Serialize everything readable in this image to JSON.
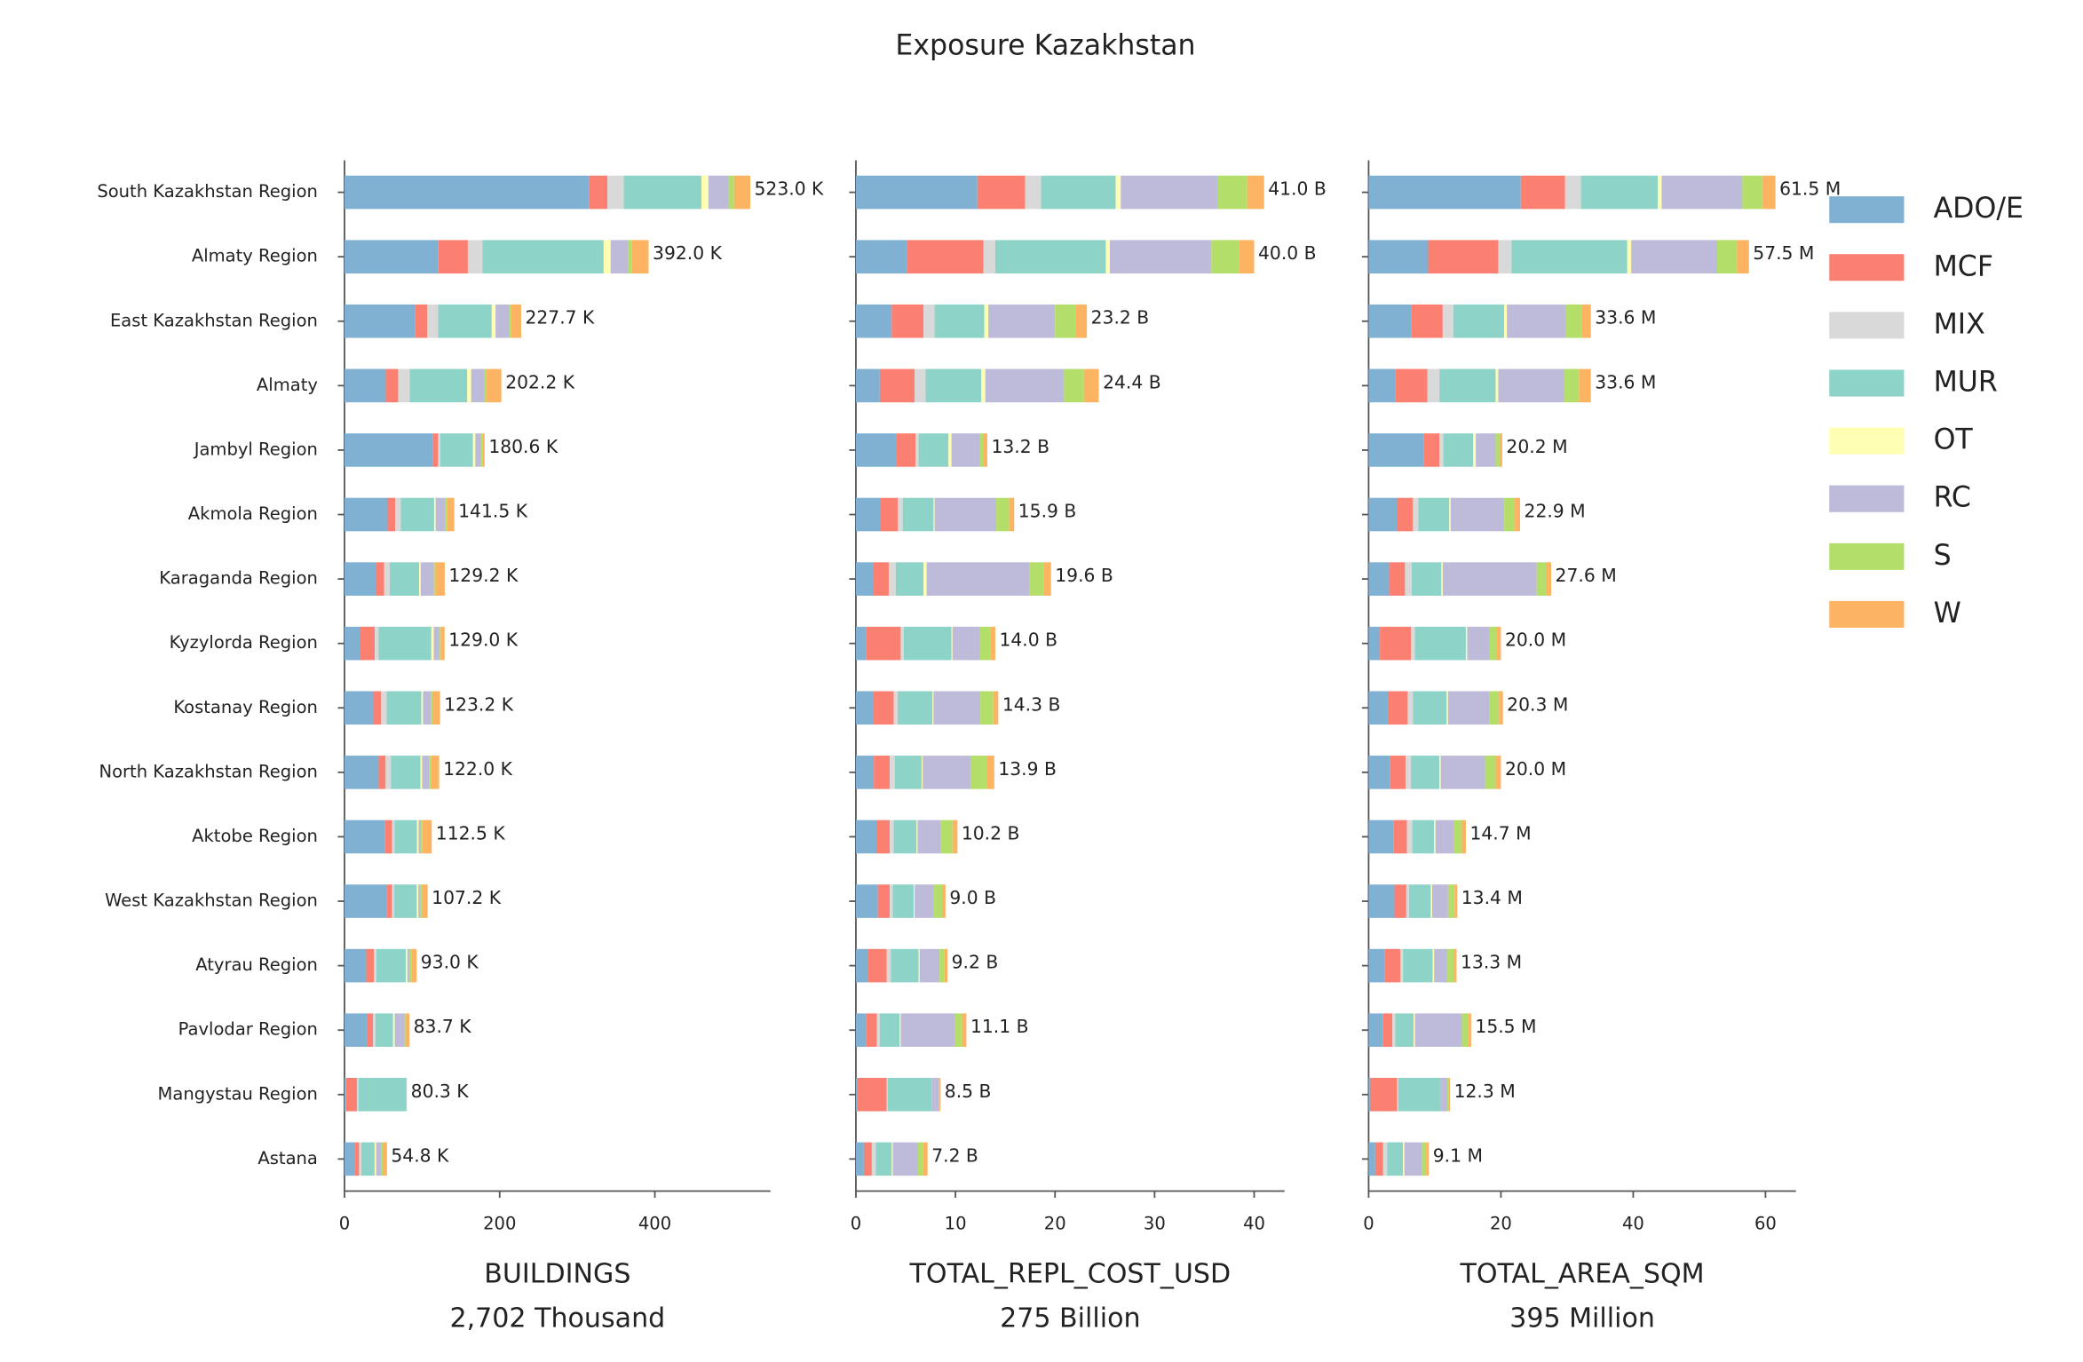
{
  "chart_data": {
    "type": "stacked_barh",
    "title": "Exposure Kazakhstan",
    "categories": [
      "South Kazakhstan Region",
      "Almaty Region",
      "East Kazakhstan Region",
      "Almaty",
      "Jambyl Region",
      "Akmola Region",
      "Karaganda Region",
      "Kyzylorda Region",
      "Kostanay Region",
      "North Kazakhstan Region",
      "Aktobe Region",
      "West Kazakhstan Region",
      "Atyrau Region",
      "Pavlodar Region",
      "Mangystau Region",
      "Astana"
    ],
    "series": [
      {
        "name": "ADO/E",
        "color": "#80b1d3"
      },
      {
        "name": "MCF",
        "color": "#fb8072"
      },
      {
        "name": "MIX",
        "color": "#d9d9d9"
      },
      {
        "name": "MUR",
        "color": "#8dd3c7"
      },
      {
        "name": "OT",
        "color": "#ffffb3"
      },
      {
        "name": "RC",
        "color": "#bebada"
      },
      {
        "name": "S",
        "color": "#b3de69"
      },
      {
        "name": "W",
        "color": "#fdb462"
      }
    ],
    "panels": [
      {
        "xlabel": "BUILDINGS",
        "subtitle": "2,702 Thousand",
        "xlim": [
          0,
          549
        ],
        "xticks": [
          0,
          200,
          400
        ],
        "values": [
          [
            315,
            121,
            90.7,
            53.2,
            113.6,
            55.5,
            41.2,
            20,
            37.2,
            44,
            52.5,
            54.2,
            28,
            29.7,
            2,
            13.8
          ],
          [
            24,
            38,
            16,
            16,
            7,
            10,
            10,
            19,
            10,
            9,
            9,
            7,
            10,
            7,
            14,
            5
          ],
          [
            21,
            19,
            14,
            15,
            3,
            7,
            7,
            5,
            7,
            7,
            3,
            3,
            3,
            3,
            2,
            3
          ],
          [
            100,
            156,
            69,
            74,
            42,
            43,
            38,
            68,
            45,
            38,
            29,
            29,
            38,
            23,
            61.3,
            17
          ],
          [
            9,
            9,
            5,
            5,
            3,
            2,
            2,
            3,
            2,
            2,
            2,
            2,
            2,
            2,
            0,
            2
          ],
          [
            26,
            22,
            17,
            17,
            7,
            12,
            17,
            7,
            10,
            9,
            3,
            3,
            3,
            12,
            1,
            7
          ],
          [
            7,
            5,
            3,
            3,
            2,
            3,
            2,
            2,
            2,
            3,
            2,
            2,
            2,
            2,
            0,
            2
          ],
          [
            21,
            22,
            13,
            19,
            3,
            9,
            12,
            5,
            10,
            10,
            12,
            7,
            7,
            5,
            0,
            5
          ]
        ],
        "totals": [
          523.0,
          392.0,
          227.7,
          202.2,
          180.6,
          141.5,
          129.2,
          129.0,
          123.2,
          122.0,
          112.5,
          107.2,
          93.0,
          83.7,
          80.3,
          54.8
        ],
        "total_labels": [
          "523.0 K",
          "392.0 K",
          "227.7 K",
          "202.2 K",
          "180.6 K",
          "141.5 K",
          "129.2 K",
          "129.0 K",
          "123.2 K",
          "122.0 K",
          "112.5 K",
          "107.2 K",
          "93.0 K",
          "83.7 K",
          "80.3 K",
          "54.8 K"
        ]
      },
      {
        "xlabel": "TOTAL_REPL_COST_USD",
        "subtitle": "275 Billion",
        "xlim": [
          0,
          43.05
        ],
        "xticks": [
          0,
          10,
          20,
          30,
          40
        ],
        "values": [
          [
            12.2,
            5.1,
            3.6,
            2.4,
            4.1,
            2.5,
            1.7,
            1.0,
            1.7,
            1.8,
            2.1,
            2.2,
            1.2,
            1.0,
            0.1,
            0.8
          ],
          [
            4.8,
            7.7,
            3.2,
            3.5,
            1.9,
            1.7,
            1.6,
            3.5,
            2.1,
            1.6,
            1.3,
            1.2,
            1.9,
            1.1,
            3.0,
            0.8
          ],
          [
            1.6,
            1.2,
            1.1,
            1.1,
            0.3,
            0.5,
            0.7,
            0.3,
            0.4,
            0.5,
            0.4,
            0.3,
            0.4,
            0.3,
            0.1,
            0.4
          ],
          [
            7.5,
            11.1,
            5.0,
            5.6,
            3.0,
            3.1,
            2.8,
            4.8,
            3.5,
            2.7,
            2.3,
            2.1,
            2.8,
            2.0,
            4.4,
            1.6
          ],
          [
            0.5,
            0.4,
            0.4,
            0.4,
            0.3,
            0.1,
            0.3,
            0.1,
            0.1,
            0.1,
            0.1,
            0.1,
            0.1,
            0.1,
            0.0,
            0.1
          ],
          [
            9.7,
            10.2,
            6.7,
            7.9,
            2.8,
            6.2,
            10.3,
            2.7,
            4.7,
            4.8,
            2.3,
            1.9,
            2.0,
            5.4,
            0.7,
            2.5
          ],
          [
            3.0,
            2.8,
            2.1,
            2.0,
            0.4,
            1.3,
            1.5,
            1.1,
            1.3,
            1.7,
            1.2,
            0.9,
            0.5,
            0.8,
            0.1,
            0.5
          ],
          [
            1.7,
            1.5,
            1.1,
            1.5,
            0.4,
            0.5,
            0.7,
            0.5,
            0.5,
            0.7,
            0.5,
            0.3,
            0.3,
            0.4,
            0.1,
            0.5
          ]
        ],
        "totals": [
          41.0,
          40.0,
          23.2,
          24.4,
          13.2,
          15.9,
          19.6,
          14.0,
          14.3,
          13.9,
          10.2,
          9.0,
          9.2,
          11.1,
          8.5,
          7.2
        ],
        "total_labels": [
          "41.0 B",
          "40.0 B",
          "23.2 B",
          "24.4 B",
          "13.2 B",
          "15.9 B",
          "19.6 B",
          "14.0 B",
          "14.3 B",
          "13.9 B",
          "10.2 B",
          "9.0 B",
          "9.2 B",
          "11.1 B",
          "8.5 B",
          "7.2 B"
        ]
      },
      {
        "xlabel": "TOTAL_AREA_SQM",
        "subtitle": "395 Million",
        "xlim": [
          0,
          64.6
        ],
        "xticks": [
          0,
          20,
          40,
          60
        ],
        "values": [
          [
            23.0,
            9.0,
            6.5,
            4.0,
            8.3,
            4.3,
            3.1,
            1.7,
            2.9,
            3.2,
            3.8,
            3.9,
            2.4,
            2.2,
            0.2,
            1.0
          ],
          [
            6.7,
            10.6,
            4.7,
            4.9,
            2.4,
            2.4,
            2.4,
            4.7,
            3.0,
            2.4,
            2.0,
            1.8,
            2.4,
            1.4,
            4.1,
            1.2
          ],
          [
            2.4,
            2.0,
            1.6,
            1.8,
            0.6,
            0.8,
            1.0,
            0.6,
            0.8,
            0.8,
            0.8,
            0.4,
            0.4,
            0.4,
            0.2,
            0.6
          ],
          [
            11.6,
            17.5,
            7.7,
            8.5,
            4.5,
            4.7,
            4.5,
            7.7,
            5.1,
            4.3,
            3.3,
            3.3,
            4.5,
            2.8,
            6.4,
            2.4
          ],
          [
            0.6,
            0.6,
            0.4,
            0.4,
            0.4,
            0.2,
            0.2,
            0.2,
            0.2,
            0.2,
            0.2,
            0.2,
            0.2,
            0.2,
            0,
            0.2
          ],
          [
            12.2,
            13.0,
            8.9,
            10.0,
            3.0,
            8.1,
            14.2,
            3.3,
            6.3,
            6.7,
            2.8,
            2.4,
            2.0,
            7.1,
            1.0,
            2.7
          ],
          [
            3.0,
            3.0,
            2.4,
            2.2,
            0.6,
            1.6,
            1.4,
            1.2,
            1.4,
            1.6,
            1.2,
            1.0,
            1.0,
            1.0,
            0.2,
            0.6
          ],
          [
            2.0,
            1.8,
            1.4,
            1.8,
            0.4,
            0.8,
            0.8,
            0.6,
            0.6,
            0.8,
            0.6,
            0.4,
            0.4,
            0.4,
            0.2,
            0.4
          ]
        ],
        "totals": [
          61.5,
          57.5,
          33.6,
          33.6,
          20.2,
          22.9,
          27.6,
          20.0,
          20.3,
          20.0,
          14.7,
          13.4,
          13.3,
          15.5,
          12.3,
          9.1
        ],
        "total_labels": [
          "61.5 M",
          "57.5 M",
          "33.6 M",
          "33.6 M",
          "20.2 M",
          "22.9 M",
          "27.6 M",
          "20.0 M",
          "20.3 M",
          "20.0 M",
          "14.7 M",
          "13.4 M",
          "13.3 M",
          "15.5 M",
          "12.3 M",
          "9.1 M"
        ]
      }
    ]
  }
}
